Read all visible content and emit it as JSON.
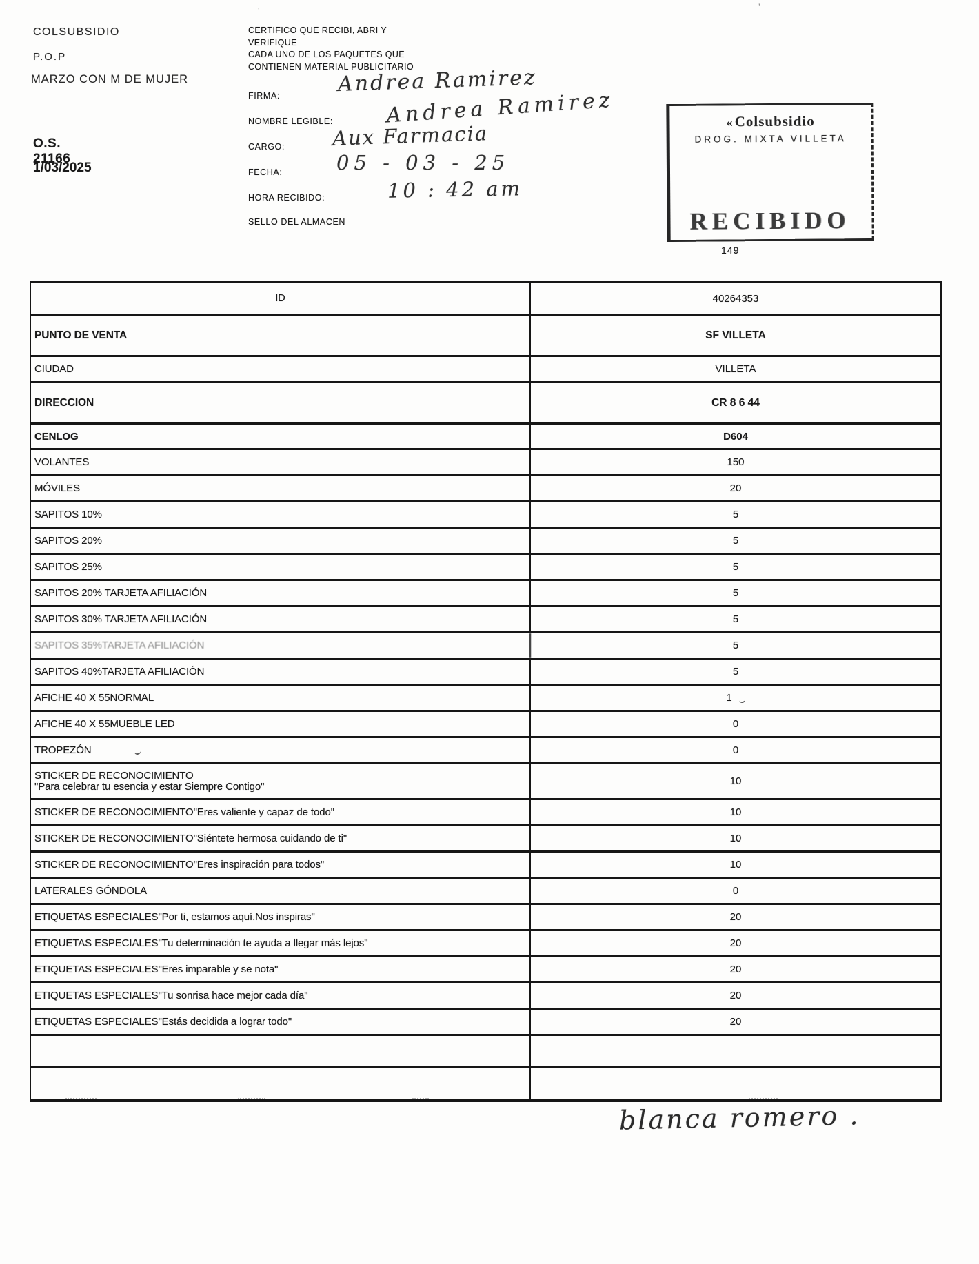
{
  "header": {
    "company": "COLSUBSIDIO",
    "program": "P.O.P",
    "campaign": "MARZO CON M DE MUJER",
    "order_number": "O.S. 21166",
    "date": "1/03/2025"
  },
  "certification": {
    "lines": [
      "CERTIFICO QUE RECIBI, ABRI Y",
      "VERIFIQUE",
      "CADA  UNO DE LOS PAQUETES QUE",
      "CONTIENEN MATERIAL PUBLICITARIO"
    ],
    "fields": [
      {
        "label": "FIRMA:",
        "value": "Andrea Ramirez"
      },
      {
        "label": "NOMBRE LEGIBLE:",
        "value": "Andrea Ramirez"
      },
      {
        "label": "CARGO:",
        "value": "Aux Farmacia"
      },
      {
        "label": "FECHA:",
        "value": "05 - 03 - 25"
      },
      {
        "label": "HORA RECIBIDO:",
        "value": "10 : 42 am"
      },
      {
        "label": "SELLO DEL ALMACEN",
        "value": ""
      }
    ]
  },
  "stamp": {
    "brand_mark": "«",
    "brand": "Colsubsidio",
    "line2": "DROG.  MIXTA  VILLETA",
    "status": "RECIBIDO",
    "number": "149"
  },
  "table": {
    "rows": [
      {
        "label": "ID",
        "value": "40264353",
        "variant": "id"
      },
      {
        "label": "PUNTO DE VENTA",
        "value": "SF VILLETA",
        "variant": "bold-tall"
      },
      {
        "label": "CIUDAD",
        "value": "VILLETA",
        "variant": "plain"
      },
      {
        "label": "DIRECCION",
        "value": "CR 8 6 44",
        "variant": "bold-tall"
      },
      {
        "label": "CENLOG",
        "value": "D604",
        "variant": "bold"
      },
      {
        "label": "VOLANTES",
        "value": "150",
        "variant": "plain"
      },
      {
        "label": "MÓVILES",
        "value": "20",
        "variant": "plain"
      },
      {
        "label": "SAPITOS 10%",
        "value": "5",
        "variant": "plain"
      },
      {
        "label": "SAPITOS 20%",
        "value": "5",
        "variant": "plain"
      },
      {
        "label": "SAPITOS 25%",
        "value": "5",
        "variant": "plain"
      },
      {
        "label": "SAPITOS 20% TARJETA AFILIACIÓN",
        "value": "5",
        "variant": "plain"
      },
      {
        "label": "SAPITOS 30% TARJETA AFILIACIÓN",
        "value": "5",
        "variant": "plain"
      },
      {
        "label": "SAPITOS 35%TARJETA AFILIACIÓN",
        "value": "5",
        "variant": "plain",
        "faded": true
      },
      {
        "label": "SAPITOS 40%TARJETA AFILIACIÓN",
        "value": "5",
        "variant": "plain"
      },
      {
        "label": "AFICHE 40 X 55NORMAL",
        "value": "1",
        "variant": "plain",
        "value_mark": true
      },
      {
        "label": "AFICHE 40 X 55MUEBLE LED",
        "value": "0",
        "variant": "plain"
      },
      {
        "label": "TROPEZÓN",
        "value": "0",
        "variant": "plain",
        "label_mark": true
      },
      {
        "label": "STICKER DE RECONOCIMIENTO",
        "label2": "\"Para celebrar tu esencia y estar Siempre Contigo\"",
        "value": "10",
        "variant": "two-line"
      },
      {
        "label": "STICKER DE RECONOCIMIENTO\"Eres valiente y capaz de todo\"",
        "value": "10",
        "variant": "plain"
      },
      {
        "label": "STICKER DE RECONOCIMIENTO\"Siéntete hermosa cuidando de ti\"",
        "value": "10",
        "variant": "plain"
      },
      {
        "label": "STICKER DE RECONOCIMIENTO\"Eres inspiración para todos\"",
        "value": "10",
        "variant": "plain"
      },
      {
        "label": "LATERALES GÓNDOLA",
        "value": "0",
        "variant": "plain"
      },
      {
        "label": "ETIQUETAS ESPECIALES\"Por ti, estamos aquí.Nos inspiras\"",
        "value": "20",
        "variant": "plain"
      },
      {
        "label": "ETIQUETAS ESPECIALES\"Tu determinación te ayuda a llegar más lejos\"",
        "value": "20",
        "variant": "plain"
      },
      {
        "label": "ETIQUETAS ESPECIALES\"Eres imparable y se nota\"",
        "value": "20",
        "variant": "plain"
      },
      {
        "label": "ETIQUETAS ESPECIALES\"Tu sonrisa hace mejor cada día\"",
        "value": "20",
        "variant": "plain"
      },
      {
        "label": "ETIQUETAS ESPECIALES\"Estás decidida a lograr todo\"",
        "value": "20",
        "variant": "plain"
      },
      {
        "label": "",
        "value": "",
        "variant": "empty"
      },
      {
        "label": "",
        "value": "",
        "variant": "empty"
      }
    ]
  },
  "footer": {
    "handwriting": "blanca romero ."
  }
}
